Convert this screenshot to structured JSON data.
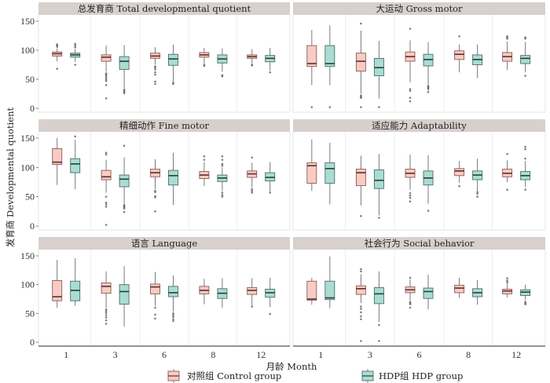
{
  "chart_data": {
    "type": "boxplot",
    "title": "",
    "xlabel": "月龄 Month",
    "ylabel": "发育商 Developmental quotient",
    "categories": [
      "1",
      "3",
      "6",
      "8",
      "12"
    ],
    "ylim": [
      0,
      160
    ],
    "yticks": [
      0,
      50,
      100,
      150
    ],
    "grid": "vertical-minor",
    "legend_position": "bottom",
    "groups": [
      {
        "key": "control",
        "name": "对照组 Control group",
        "fill": "#f8cbc4",
        "stroke": "#8b5a56"
      },
      {
        "key": "hdp",
        "name": "HDP组 HDP group",
        "fill": "#a9ddd3",
        "stroke": "#4f6b66"
      }
    ],
    "panels": [
      {
        "title": "总发育商 Total developmental quotient",
        "control": [
          {
            "min": 81,
            "q1": 90,
            "median": 94,
            "q3": 97,
            "max": 103,
            "outliers": [
              68,
              106,
              108,
              110
            ]
          },
          {
            "min": 63,
            "q1": 81,
            "median": 88,
            "q3": 92,
            "max": 108,
            "outliers": [
              60,
              58,
              56,
              53,
              50,
              47,
              40,
              17
            ]
          },
          {
            "min": 75,
            "q1": 86,
            "median": 90,
            "q3": 95,
            "max": 105,
            "outliers": [
              72,
              70,
              67,
              62,
              58,
              46,
              42
            ]
          },
          {
            "min": 77,
            "q1": 88,
            "median": 92,
            "q3": 96,
            "max": 104,
            "outliers": [
              75,
              73
            ]
          },
          {
            "min": 77,
            "q1": 86,
            "median": 89,
            "q3": 92,
            "max": 102,
            "outliers": [
              75,
              74
            ]
          }
        ],
        "hdp": [
          {
            "min": 80,
            "q1": 88,
            "median": 92,
            "q3": 95,
            "max": 102,
            "outliers": [
              75,
              105,
              108,
              111
            ]
          },
          {
            "min": 34,
            "q1": 67,
            "median": 81,
            "q3": 89,
            "max": 109,
            "outliers": [
              32,
              30,
              28,
              26
            ]
          },
          {
            "min": 46,
            "q1": 74,
            "median": 85,
            "q3": 93,
            "max": 110,
            "outliers": [
              44,
              42
            ]
          },
          {
            "min": 63,
            "q1": 78,
            "median": 85,
            "q3": 92,
            "max": 103,
            "outliers": [
              57,
              55
            ]
          },
          {
            "min": 65,
            "q1": 80,
            "median": 86,
            "q3": 91,
            "max": 104,
            "outliers": [
              62
            ]
          }
        ]
      },
      {
        "title": "大运动 Gross motor",
        "control": [
          {
            "min": 40,
            "q1": 72,
            "median": 77,
            "q3": 108,
            "max": 135,
            "outliers": [
              2
            ]
          },
          {
            "min": 25,
            "q1": 64,
            "median": 81,
            "q3": 95,
            "max": 134,
            "outliers": [
              146,
              22,
              20,
              18,
              2
            ]
          },
          {
            "min": 45,
            "q1": 81,
            "median": 89,
            "q3": 97,
            "max": 117,
            "outliers": [
              137,
              33,
              30,
              18,
              12
            ]
          },
          {
            "min": 62,
            "q1": 84,
            "median": 93,
            "q3": 99,
            "max": 110,
            "outliers": [
              124
            ]
          },
          {
            "min": 66,
            "q1": 81,
            "median": 89,
            "q3": 96,
            "max": 115,
            "outliers": [
              120,
              122,
              124
            ]
          }
        ],
        "hdp": [
          {
            "min": 40,
            "q1": 72,
            "median": 77,
            "q3": 108,
            "max": 143,
            "outliers": [
              2
            ]
          },
          {
            "min": 17,
            "q1": 56,
            "median": 70,
            "q3": 86,
            "max": 116,
            "outliers": [
              2
            ]
          },
          {
            "min": 30,
            "q1": 73,
            "median": 84,
            "q3": 93,
            "max": 114,
            "outliers": [
              38,
              36,
              34,
              28
            ]
          },
          {
            "min": 52,
            "q1": 75,
            "median": 84,
            "q3": 92,
            "max": 110,
            "outliers": []
          },
          {
            "min": 62,
            "q1": 77,
            "median": 86,
            "q3": 91,
            "max": 114,
            "outliers": [
              56,
              120,
              122
            ]
          }
        ]
      },
      {
        "title": "精细动作 Fine motor",
        "control": [
          {
            "min": 70,
            "q1": 105,
            "median": 109,
            "q3": 132,
            "max": 150,
            "outliers": []
          },
          {
            "min": 57,
            "q1": 79,
            "median": 84,
            "q3": 95,
            "max": 113,
            "outliers": [
              125,
              122,
              50,
              40,
              37,
              33,
              2
            ]
          },
          {
            "min": 63,
            "q1": 84,
            "median": 91,
            "q3": 97,
            "max": 114,
            "outliers": [
              60,
              58,
              51,
              49,
              25
            ]
          },
          {
            "min": 68,
            "q1": 81,
            "median": 87,
            "q3": 93,
            "max": 109,
            "outliers": [
              119,
              113
            ]
          },
          {
            "min": 66,
            "q1": 83,
            "median": 89,
            "q3": 94,
            "max": 108,
            "outliers": [
              117,
              63,
              60,
              57
            ]
          }
        ],
        "hdp": [
          {
            "min": 63,
            "q1": 91,
            "median": 106,
            "q3": 115,
            "max": 147,
            "outliers": [
              153
            ]
          },
          {
            "min": 38,
            "q1": 67,
            "median": 80,
            "q3": 87,
            "max": 117,
            "outliers": [
              137,
              36,
              34,
              32,
              30,
              24
            ]
          },
          {
            "min": 36,
            "q1": 70,
            "median": 86,
            "q3": 95,
            "max": 125,
            "outliers": []
          },
          {
            "min": 60,
            "q1": 76,
            "median": 82,
            "q3": 87,
            "max": 100,
            "outliers": [
              119,
              113,
              106,
              103,
              57,
              53,
              50
            ]
          },
          {
            "min": 59,
            "q1": 77,
            "median": 83,
            "q3": 91,
            "max": 109,
            "outliers": [
              57
            ]
          }
        ]
      },
      {
        "title": "适应能力 Adaptability",
        "control": [
          {
            "min": 60,
            "q1": 73,
            "median": 103,
            "q3": 108,
            "max": 148,
            "outliers": []
          },
          {
            "min": 35,
            "q1": 69,
            "median": 91,
            "q3": 97,
            "max": 120,
            "outliers": [
              17
            ]
          },
          {
            "min": 62,
            "q1": 83,
            "median": 90,
            "q3": 97,
            "max": 122,
            "outliers": [
              56,
              52,
              48,
              42
            ]
          },
          {
            "min": 74,
            "q1": 86,
            "median": 94,
            "q3": 98,
            "max": 111,
            "outliers": [
              68
            ]
          },
          {
            "min": 75,
            "q1": 84,
            "median": 90,
            "q3": 97,
            "max": 112,
            "outliers": [
              123,
              62
            ]
          }
        ],
        "hdp": [
          {
            "min": 37,
            "q1": 73,
            "median": 98,
            "q3": 108,
            "max": 142,
            "outliers": []
          },
          {
            "min": 18,
            "q1": 64,
            "median": 78,
            "q3": 96,
            "max": 123,
            "outliers": [
              14
            ]
          },
          {
            "min": 38,
            "q1": 70,
            "median": 82,
            "q3": 94,
            "max": 121,
            "outliers": [
              26
            ]
          },
          {
            "min": 60,
            "q1": 79,
            "median": 87,
            "q3": 94,
            "max": 115,
            "outliers": [
              58,
              55,
              50
            ]
          },
          {
            "min": 67,
            "q1": 79,
            "median": 86,
            "q3": 93,
            "max": 111,
            "outliers": [
              135,
              131,
              115,
              62
            ]
          }
        ]
      },
      {
        "title": "语言 Language",
        "control": [
          {
            "min": 60,
            "q1": 72,
            "median": 79,
            "q3": 107,
            "max": 143,
            "outliers": []
          },
          {
            "min": 60,
            "q1": 85,
            "median": 97,
            "q3": 103,
            "max": 123,
            "outliers": [
              57,
              54,
              51,
              47,
              43,
              38,
              32
            ]
          },
          {
            "min": 63,
            "q1": 84,
            "median": 96,
            "q3": 101,
            "max": 122,
            "outliers": [
              60,
              48,
              41
            ]
          },
          {
            "min": 66,
            "q1": 84,
            "median": 90,
            "q3": 97,
            "max": 110,
            "outliers": []
          },
          {
            "min": 64,
            "q1": 83,
            "median": 90,
            "q3": 95,
            "max": 111,
            "outliers": [
              62
            ]
          }
        ],
        "hdp": [
          {
            "min": 63,
            "q1": 72,
            "median": 90,
            "q3": 106,
            "max": 146,
            "outliers": []
          },
          {
            "min": 27,
            "q1": 66,
            "median": 88,
            "q3": 100,
            "max": 132,
            "outliers": []
          },
          {
            "min": 53,
            "q1": 79,
            "median": 86,
            "q3": 97,
            "max": 116,
            "outliers": [
              50,
              47,
              44,
              40,
              37
            ]
          },
          {
            "min": 60,
            "q1": 76,
            "median": 85,
            "q3": 93,
            "max": 111,
            "outliers": []
          },
          {
            "min": 61,
            "q1": 78,
            "median": 86,
            "q3": 92,
            "max": 112,
            "outliers": [
              49
            ]
          }
        ]
      },
      {
        "title": "社会行为 Social behavior",
        "control": [
          {
            "min": 65,
            "q1": 73,
            "median": 75,
            "q3": 106,
            "max": 112,
            "outliers": []
          },
          {
            "min": 68,
            "q1": 83,
            "median": 93,
            "q3": 98,
            "max": 118,
            "outliers": [
              127,
              123,
              62,
              58,
              52,
              45,
              40,
              2
            ]
          },
          {
            "min": 73,
            "q1": 86,
            "median": 91,
            "q3": 96,
            "max": 109,
            "outliers": [
              112,
              70,
              68,
              66,
              60
            ]
          },
          {
            "min": 77,
            "q1": 86,
            "median": 94,
            "q3": 99,
            "max": 112,
            "outliers": []
          },
          {
            "min": 78,
            "q1": 84,
            "median": 89,
            "q3": 92,
            "max": 102,
            "outliers": [
              111,
              107,
              104
            ]
          }
        ],
        "hdp": [
          {
            "min": 59,
            "q1": 74,
            "median": 77,
            "q3": 106,
            "max": 149,
            "outliers": []
          },
          {
            "min": 35,
            "q1": 67,
            "median": 84,
            "q3": 95,
            "max": 123,
            "outliers": [
              30,
              2
            ]
          },
          {
            "min": 57,
            "q1": 76,
            "median": 88,
            "q3": 94,
            "max": 117,
            "outliers": []
          },
          {
            "min": 65,
            "q1": 79,
            "median": 86,
            "q3": 93,
            "max": 108,
            "outliers": []
          },
          {
            "min": 73,
            "q1": 81,
            "median": 87,
            "q3": 91,
            "max": 100,
            "outliers": [
              70,
              68,
              66
            ]
          }
        ]
      }
    ]
  }
}
